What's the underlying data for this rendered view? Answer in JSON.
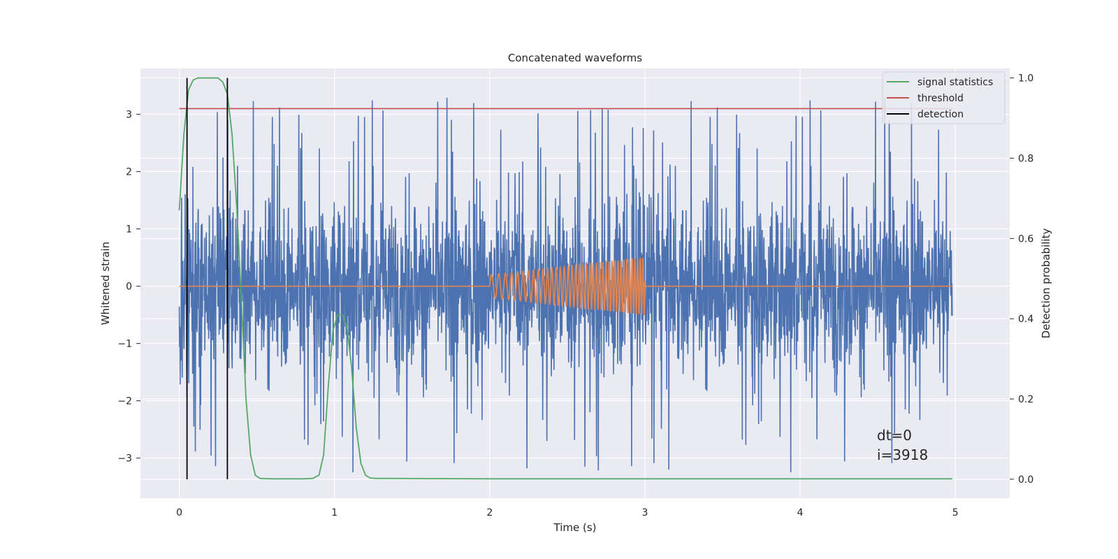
{
  "chart_data": {
    "type": "line",
    "title": "Concatenated waveforms",
    "xlabel": "Time (s)",
    "ylabel": "Whitened strain",
    "y2label": "Detection probability",
    "xlim": [
      -0.25,
      5.35
    ],
    "ylim": [
      -3.7,
      3.8
    ],
    "y2lim": [
      -0.0473,
      1.0236
    ],
    "x_ticks": [
      0,
      1,
      2,
      3,
      4,
      5
    ],
    "x_tick_labels": [
      "0",
      "1",
      "2",
      "3",
      "4",
      "5"
    ],
    "y_ticks": [
      -3,
      -2,
      -1,
      0,
      1,
      2,
      3
    ],
    "y_tick_labels": [
      "−3",
      "−2",
      "−1",
      "0",
      "1",
      "2",
      "3"
    ],
    "y2_ticks": [
      0.0,
      0.2,
      0.4,
      0.6,
      0.8,
      1.0
    ],
    "y2_tick_labels": [
      "0.0",
      "0.2",
      "0.4",
      "0.6",
      "0.8",
      "1.0"
    ],
    "grid": true,
    "legend_position": "top-right",
    "colors": {
      "strain": "#4c72b0",
      "injection": "#dd8452",
      "signal_statistics": "#55a868",
      "threshold": "#c44e52",
      "detection": "#000000",
      "plot_background": "#eaeaf2",
      "grid": "#ffffff"
    },
    "series": [
      {
        "name": "signal statistics",
        "axis": "right",
        "x": [
          0.0,
          0.03,
          0.06,
          0.09,
          0.12,
          0.15,
          0.2,
          0.25,
          0.28,
          0.31,
          0.34,
          0.37,
          0.4,
          0.43,
          0.46,
          0.49,
          0.52,
          0.6,
          0.7,
          0.8,
          0.86,
          0.9,
          0.93,
          0.96,
          0.99,
          1.02,
          1.05,
          1.08,
          1.11,
          1.14,
          1.17,
          1.2,
          1.23,
          1.27,
          1.35,
          2.0,
          3.0,
          4.0,
          4.98
        ],
        "y": [
          0.67,
          0.86,
          0.97,
          0.995,
          1.0,
          1.0,
          1.0,
          1.0,
          0.99,
          0.96,
          0.86,
          0.68,
          0.45,
          0.2,
          0.06,
          0.01,
          0.002,
          0.001,
          0.001,
          0.001,
          0.002,
          0.01,
          0.06,
          0.23,
          0.37,
          0.41,
          0.41,
          0.38,
          0.28,
          0.13,
          0.04,
          0.01,
          0.003,
          0.002,
          0.002,
          0.001,
          0.001,
          0.001,
          0.001
        ]
      },
      {
        "name": "threshold",
        "axis": "left",
        "x": [
          0.0,
          4.98
        ],
        "y": [
          3.1,
          3.1
        ]
      },
      {
        "name": "detection",
        "axis": "right",
        "x": [
          0.05,
          0.31
        ],
        "y": [
          0.0,
          1.0
        ]
      }
    ],
    "strain_envelope": {
      "axis": "left",
      "x_range": [
        0.0,
        4.98
      ],
      "approx_std": 0.65,
      "peak_max": 3.4,
      "peak_min": -3.4
    },
    "injected_chirp": {
      "axis": "left",
      "t_start": 2.0,
      "t_end": 3.0,
      "amp_start": 0.2,
      "amp_end": 0.5,
      "freq_start": 20,
      "freq_end": 60
    },
    "annotation_lines": [
      "dt=0",
      "i=3918"
    ]
  }
}
